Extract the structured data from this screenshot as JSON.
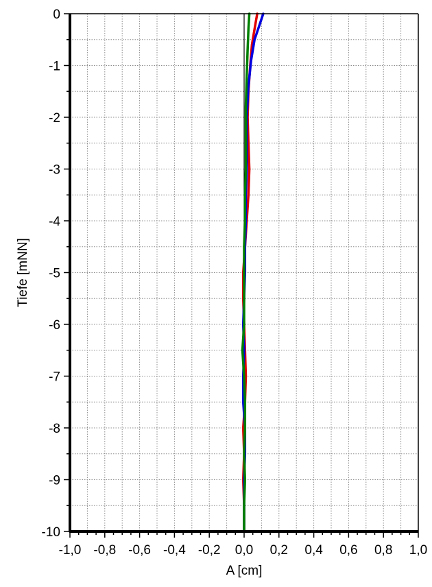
{
  "chart_data": {
    "type": "line",
    "xlabel": "A [cm]",
    "ylabel": "Tiefe [mNN]",
    "xlim": [
      -1.0,
      1.0
    ],
    "ylim": [
      -10,
      0
    ],
    "x_ticks": [
      -1.0,
      -0.8,
      -0.6,
      -0.4,
      -0.2,
      0.0,
      0.2,
      0.4,
      0.6,
      0.8,
      1.0
    ],
    "x_tick_labels": [
      "-1,0",
      "-0,8",
      "-0,6",
      "-0,4",
      "-0,2",
      "0,0",
      "0,2",
      "0,4",
      "0,6",
      "0,8",
      "1,0"
    ],
    "y_ticks": [
      0,
      -1,
      -2,
      -3,
      -4,
      -5,
      -6,
      -7,
      -8,
      -9,
      -10
    ],
    "y_tick_labels": [
      "0",
      "-1",
      "-2",
      "-3",
      "-4",
      "-5",
      "-6",
      "-7",
      "-8",
      "-9",
      "-10"
    ],
    "grid": true,
    "colors": {
      "axis": "#000000",
      "grid": "#8c8c8c",
      "zero_line": "#000000"
    },
    "series": [
      {
        "color": "#e00000",
        "points": [
          [
            0.075,
            0.0
          ],
          [
            0.06,
            -0.3
          ],
          [
            0.045,
            -0.6
          ],
          [
            0.035,
            -1.0
          ],
          [
            0.025,
            -1.5
          ],
          [
            0.02,
            -2.0
          ],
          [
            0.025,
            -2.5
          ],
          [
            0.03,
            -3.0
          ],
          [
            0.025,
            -3.5
          ],
          [
            0.015,
            -4.0
          ],
          [
            0.005,
            -4.5
          ],
          [
            -0.005,
            -5.0
          ],
          [
            -0.005,
            -5.5
          ],
          [
            0.0,
            -6.0
          ],
          [
            0.005,
            -6.5
          ],
          [
            0.01,
            -7.0
          ],
          [
            0.005,
            -7.5
          ],
          [
            -0.005,
            -8.0
          ],
          [
            0.0,
            -8.5
          ],
          [
            -0.005,
            -9.0
          ],
          [
            0.0,
            -9.5
          ],
          [
            0.0,
            -10.0
          ]
        ]
      },
      {
        "color": "#0000e0",
        "points": [
          [
            0.11,
            0.0
          ],
          [
            0.09,
            -0.2
          ],
          [
            0.06,
            -0.5
          ],
          [
            0.04,
            -0.9
          ],
          [
            0.025,
            -1.4
          ],
          [
            0.015,
            -2.0
          ],
          [
            0.015,
            -2.5
          ],
          [
            0.015,
            -3.0
          ],
          [
            0.01,
            -3.5
          ],
          [
            0.01,
            -4.0
          ],
          [
            0.005,
            -4.5
          ],
          [
            0.005,
            -5.0
          ],
          [
            0.0,
            -5.5
          ],
          [
            -0.005,
            -6.0
          ],
          [
            0.0,
            -6.5
          ],
          [
            -0.005,
            -7.0
          ],
          [
            -0.005,
            -7.5
          ],
          [
            0.005,
            -8.0
          ],
          [
            0.005,
            -8.5
          ],
          [
            0.0,
            -9.0
          ],
          [
            0.0,
            -9.5
          ],
          [
            0.0,
            -10.0
          ]
        ]
      },
      {
        "color": "#008000",
        "points": [
          [
            0.03,
            0.0
          ],
          [
            0.025,
            -0.3
          ],
          [
            0.02,
            -0.7
          ],
          [
            0.015,
            -1.2
          ],
          [
            0.01,
            -1.8
          ],
          [
            0.01,
            -2.5
          ],
          [
            0.01,
            -3.0
          ],
          [
            0.005,
            -3.5
          ],
          [
            0.005,
            -4.0
          ],
          [
            0.0,
            -4.5
          ],
          [
            0.0,
            -5.0
          ],
          [
            0.0,
            -5.5
          ],
          [
            0.0,
            -6.0
          ],
          [
            -0.01,
            -6.5
          ],
          [
            0.0,
            -7.0
          ],
          [
            0.005,
            -7.5
          ],
          [
            0.005,
            -8.0
          ],
          [
            0.0,
            -8.5
          ],
          [
            0.005,
            -9.0
          ],
          [
            0.0,
            -9.5
          ],
          [
            0.0,
            -10.0
          ]
        ]
      }
    ]
  }
}
